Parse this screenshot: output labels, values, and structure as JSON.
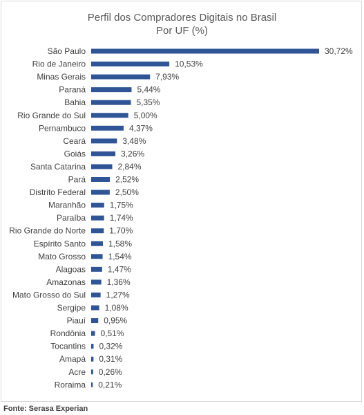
{
  "chart_data": {
    "type": "bar",
    "orientation": "horizontal",
    "title": "Perfil dos Compradores Digitais no Brasil",
    "subtitle": "Por UF (%)",
    "bar_color": "#2f5597",
    "categories": [
      "São Paulo",
      "Rio de Janeiro",
      "Minas Gerais",
      "Paraná",
      "Bahia",
      "Rio Grande do Sul",
      "Pernambuco",
      "Ceará",
      "Goiás",
      "Santa Catarina",
      "Pará",
      "Distrito Federal",
      "Maranhão",
      "Paraíba",
      "Rio Grande do Norte",
      "Espírito Santo",
      "Mato Grosso",
      "Alagoas",
      "Amazonas",
      "Mato Grosso do Sul",
      "Sergipe",
      "Piauí",
      "Rondônia",
      "Tocantins",
      "Amapá",
      "Acre",
      "Roraima"
    ],
    "values": [
      30.72,
      10.53,
      7.93,
      5.44,
      5.35,
      5.0,
      4.37,
      3.48,
      3.26,
      2.84,
      2.52,
      2.5,
      1.75,
      1.74,
      1.7,
      1.58,
      1.54,
      1.47,
      1.36,
      1.27,
      1.08,
      0.95,
      0.51,
      0.32,
      0.31,
      0.26,
      0.21
    ],
    "labels": [
      "30,72%",
      "10,53%",
      "7,93%",
      "5,44%",
      "5,35%",
      "5,00%",
      "4,37%",
      "3,48%",
      "3,26%",
      "2,84%",
      "2,52%",
      "2,50%",
      "1,75%",
      "1,74%",
      "1,70%",
      "1,58%",
      "1,54%",
      "1,47%",
      "1,36%",
      "1,27%",
      "1,08%",
      "0,95%",
      "0,51%",
      "0,32%",
      "0,31%",
      "0,26%",
      "0,21%"
    ],
    "grid": false,
    "legend": "none"
  },
  "source": "Fonte: Serasa Experian"
}
